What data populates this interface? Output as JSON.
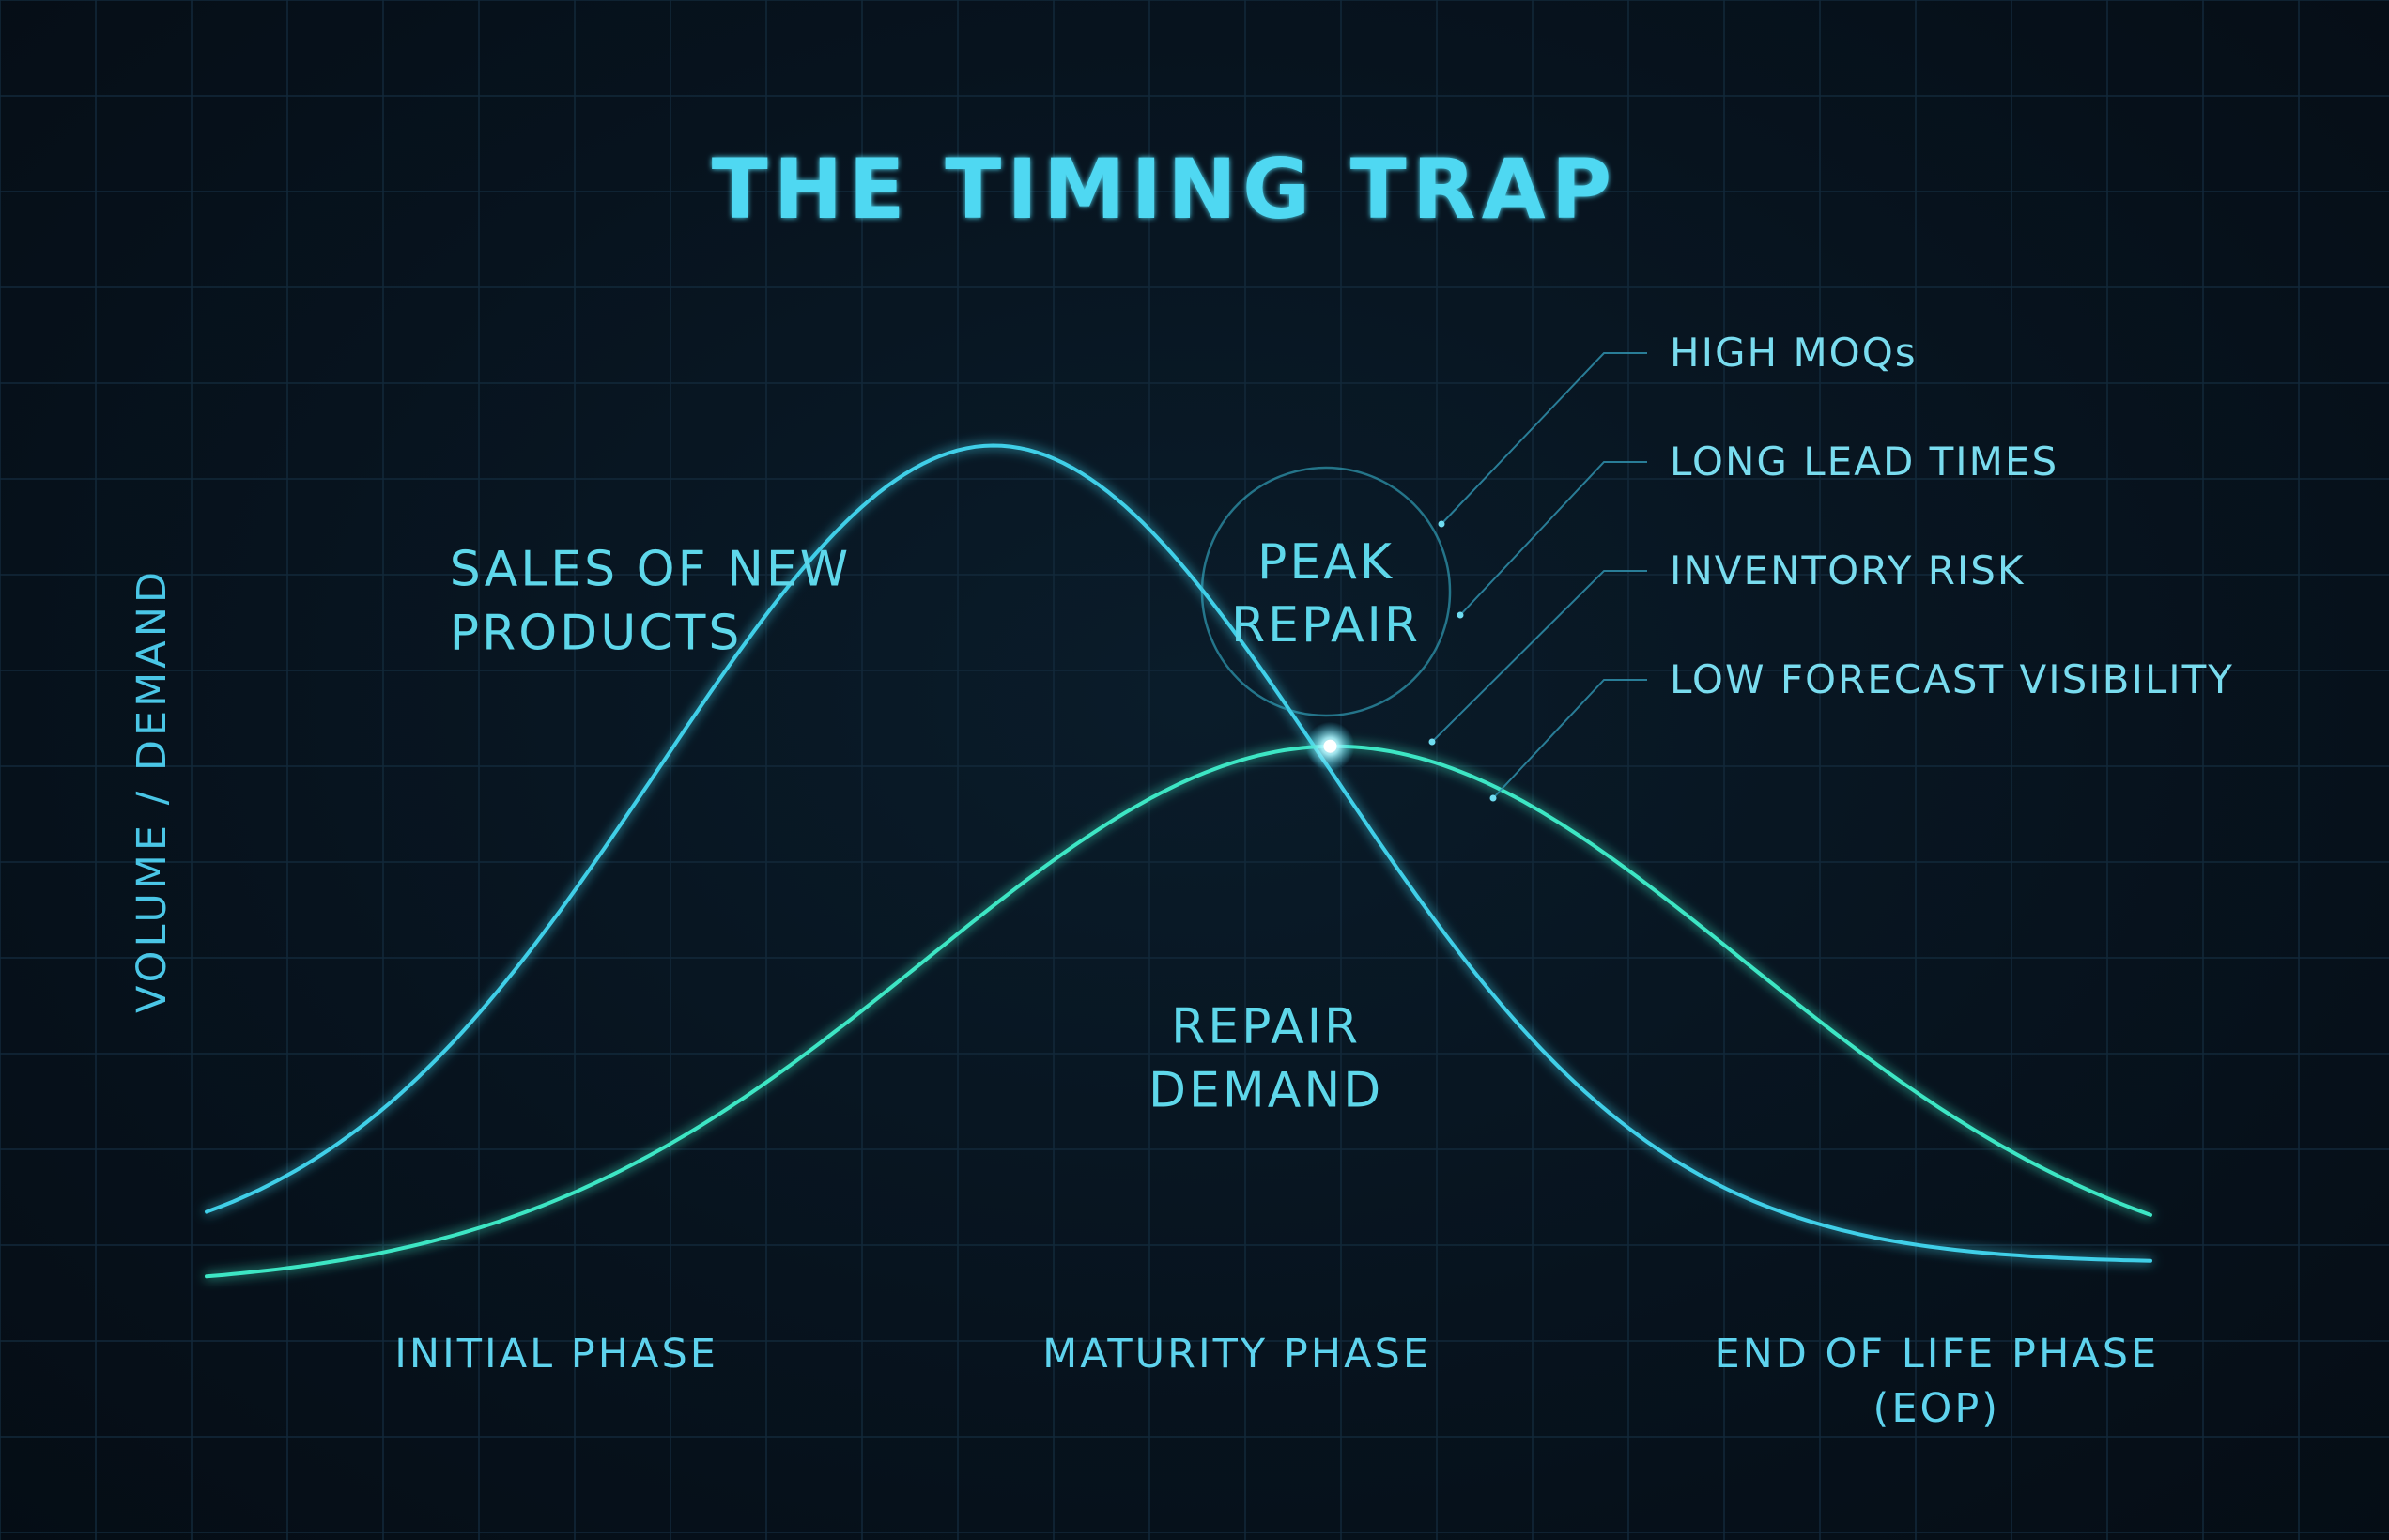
{
  "chart_data": {
    "type": "line",
    "title": "THE TIMING TRAP",
    "ylabel": "VOLUME / DEMAND",
    "xlabel": "",
    "x_ticks": [
      {
        "lines": [
          "INITIAL PHASE"
        ],
        "x": 0.18
      },
      {
        "lines": [
          "MATURITY PHASE"
        ],
        "x": 0.53
      },
      {
        "lines": [
          "END OF LIFE PHASE",
          "(EOP)"
        ],
        "x": 0.89
      }
    ],
    "xlim": [
      0,
      1
    ],
    "ylim": [
      0,
      1
    ],
    "series": [
      {
        "name": "SALES OF NEW PRODUCTS",
        "label_lines": [
          "SALES OF NEW",
          "PRODUCTS"
        ],
        "color": "#3fcfe8",
        "mu": 0.405,
        "sigma": 0.172,
        "amplitude": 0.995,
        "base": 0.03,
        "label_at": {
          "x": 0.125,
          "y": 0.83
        }
      },
      {
        "name": "REPAIR DEMAND",
        "label_lines": [
          "REPAIR",
          "DEMAND"
        ],
        "color": "#3ee6c4",
        "mu": 0.58,
        "sigma": 0.21,
        "amplitude": 0.64,
        "base": 0.0,
        "label_at": {
          "x": 0.545,
          "y": 0.29
        }
      }
    ],
    "annotations": {
      "peak_label": [
        "PEAK",
        "REPAIR"
      ],
      "peak_point": {
        "x": 0.578,
        "y": 0.64
      },
      "callouts": [
        "HIGH MOQs",
        "LONG LEAD TIMES",
        "INVENTORY RISK",
        "LOW FORECAST VISIBILITY"
      ]
    },
    "grid": true
  },
  "colors": {
    "background": "#061019",
    "accent": "#4fd8f2",
    "grid": "#12293a",
    "axis": "#3cc3e2"
  }
}
